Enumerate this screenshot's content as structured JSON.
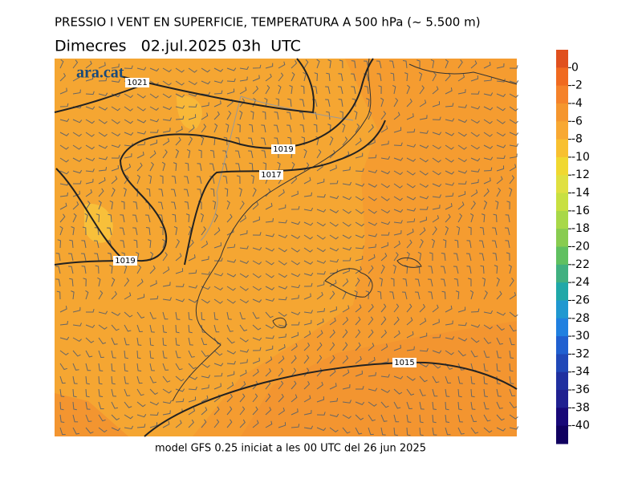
{
  "header": {
    "title": "PRESSIO I VENT EN SUPERFICIE, TEMPERATURA A 500 hPa (~ 5.500 m)",
    "subtitle": "Dimecres   02.jul.2025 03h  UTC"
  },
  "logo": "ara.cat",
  "isobar_labels": [
    1021,
    1019,
    1017,
    1019,
    1015
  ],
  "footer": "model GFS 0.25 iniciat a les 00 UTC del 26 jun 2025",
  "colorbar": {
    "ticks": [
      0,
      -2,
      -4,
      -6,
      -8,
      -10,
      -12,
      -14,
      -16,
      -18,
      -20,
      -22,
      -24,
      -26,
      -28,
      -30,
      -32,
      -34,
      -36,
      -38,
      -40
    ],
    "colors": [
      "#e0501e",
      "#f06a20",
      "#f5822a",
      "#f5962e",
      "#f8a832",
      "#f8c030",
      "#f0d830",
      "#e0e040",
      "#c8e040",
      "#a8d848",
      "#88cc50",
      "#60c060",
      "#40b080",
      "#20a8a8",
      "#2098d0",
      "#2080e0",
      "#2060d0",
      "#2048b8",
      "#2030a0",
      "#202090",
      "#180878",
      "#100060"
    ]
  }
}
